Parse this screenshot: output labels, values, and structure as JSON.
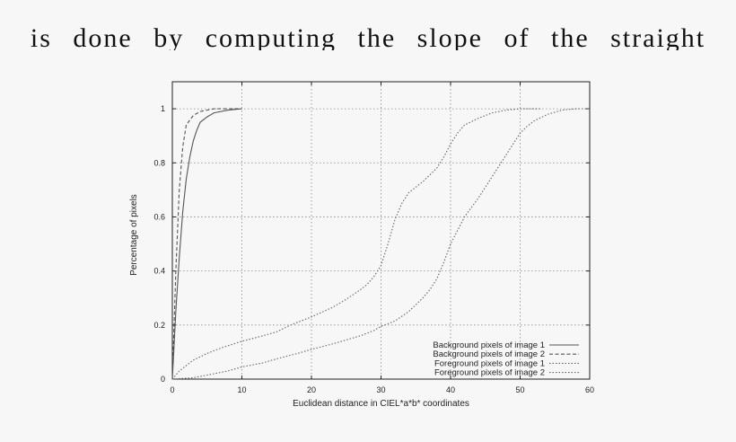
{
  "header": {
    "text": "is done by computing the slope of the straight"
  },
  "chart_data": {
    "type": "line",
    "title": "",
    "xlabel": "Euclidean distance in CIEL*a*b* coordinates",
    "ylabel": "Percentage of pixels",
    "xlim": [
      0,
      60
    ],
    "ylim": [
      0,
      1.1
    ],
    "xticks": [
      "0",
      "10",
      "20",
      "30",
      "40",
      "50",
      "60"
    ],
    "yticks": [
      "0",
      "0.2",
      "0.4",
      "0.6",
      "0.8",
      "1"
    ],
    "grid": true,
    "legend_position": "bottom-right",
    "series": [
      {
        "name": "Background pixels of image 1",
        "style": "solid",
        "color": "#555555",
        "points": [
          [
            0,
            0
          ],
          [
            0.5,
            0.25
          ],
          [
            1,
            0.45
          ],
          [
            1.5,
            0.62
          ],
          [
            2,
            0.74
          ],
          [
            2.5,
            0.82
          ],
          [
            3,
            0.88
          ],
          [
            3.5,
            0.92
          ],
          [
            4,
            0.95
          ],
          [
            5,
            0.97
          ],
          [
            6,
            0.985
          ],
          [
            8,
            0.995
          ],
          [
            10,
            1
          ]
        ]
      },
      {
        "name": "Background pixels of image 2",
        "style": "dashed",
        "color": "#555555",
        "points": [
          [
            0,
            0
          ],
          [
            0.5,
            0.4
          ],
          [
            1,
            0.7
          ],
          [
            1.5,
            0.86
          ],
          [
            2,
            0.94
          ],
          [
            3,
            0.975
          ],
          [
            4,
            0.99
          ],
          [
            6,
            1
          ],
          [
            10,
            1
          ]
        ]
      },
      {
        "name": "Foreground pixels of image 1",
        "style": "dotted",
        "color": "#666666",
        "points": [
          [
            0,
            0
          ],
          [
            1,
            0.03
          ],
          [
            2,
            0.05
          ],
          [
            3,
            0.07
          ],
          [
            5,
            0.095
          ],
          [
            7,
            0.115
          ],
          [
            10,
            0.14
          ],
          [
            13,
            0.16
          ],
          [
            15,
            0.175
          ],
          [
            17,
            0.2
          ],
          [
            20,
            0.23
          ],
          [
            23,
            0.265
          ],
          [
            25,
            0.295
          ],
          [
            27,
            0.33
          ],
          [
            28,
            0.35
          ],
          [
            29,
            0.38
          ],
          [
            30,
            0.42
          ],
          [
            31,
            0.5
          ],
          [
            32,
            0.59
          ],
          [
            33,
            0.65
          ],
          [
            34,
            0.69
          ],
          [
            36,
            0.73
          ],
          [
            38,
            0.78
          ],
          [
            39,
            0.82
          ],
          [
            40,
            0.87
          ],
          [
            41,
            0.91
          ],
          [
            42,
            0.94
          ],
          [
            44,
            0.965
          ],
          [
            46,
            0.985
          ],
          [
            48,
            0.995
          ],
          [
            50,
            1
          ],
          [
            53,
            1
          ]
        ]
      },
      {
        "name": "Foreground pixels of image 2",
        "style": "dotted",
        "color": "#666666",
        "points": [
          [
            0,
            0
          ],
          [
            3,
            0.005
          ],
          [
            5,
            0.015
          ],
          [
            8,
            0.03
          ],
          [
            10,
            0.045
          ],
          [
            13,
            0.06
          ],
          [
            15,
            0.075
          ],
          [
            18,
            0.095
          ],
          [
            20,
            0.11
          ],
          [
            23,
            0.13
          ],
          [
            25,
            0.145
          ],
          [
            27,
            0.16
          ],
          [
            29,
            0.18
          ],
          [
            30,
            0.195
          ],
          [
            32,
            0.215
          ],
          [
            34,
            0.25
          ],
          [
            36,
            0.3
          ],
          [
            37,
            0.33
          ],
          [
            38,
            0.37
          ],
          [
            39,
            0.43
          ],
          [
            40,
            0.5
          ],
          [
            41,
            0.55
          ],
          [
            42,
            0.6
          ],
          [
            44,
            0.67
          ],
          [
            46,
            0.75
          ],
          [
            48,
            0.83
          ],
          [
            49,
            0.87
          ],
          [
            50,
            0.91
          ],
          [
            51,
            0.935
          ],
          [
            52,
            0.955
          ],
          [
            54,
            0.98
          ],
          [
            56,
            0.995
          ],
          [
            58,
            1
          ],
          [
            60,
            1
          ]
        ]
      }
    ]
  }
}
